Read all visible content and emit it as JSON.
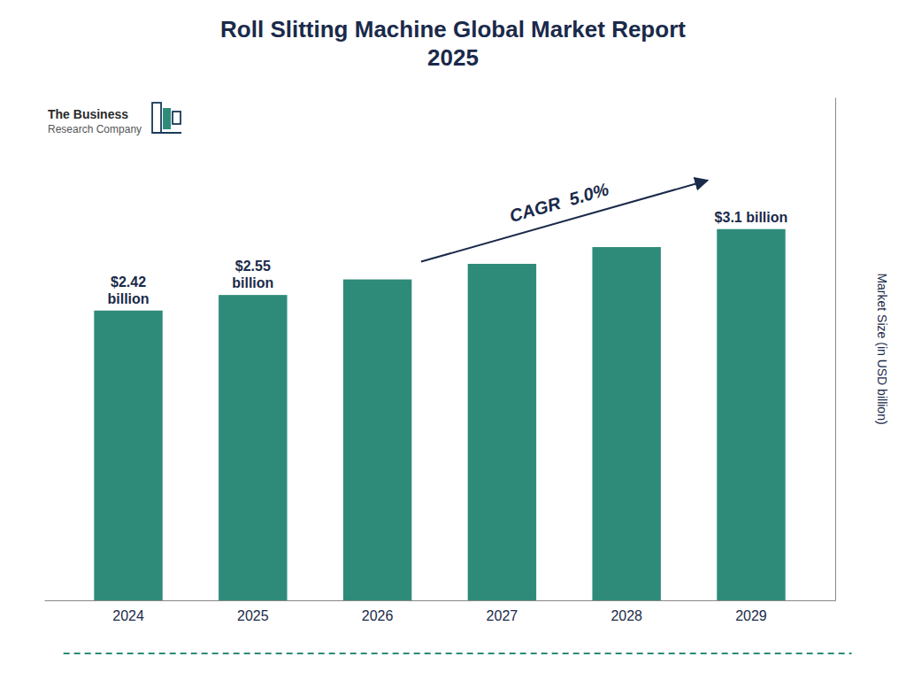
{
  "chart_data": {
    "type": "bar",
    "title": "Roll Slitting Machine Global Market Report\n2025",
    "categories": [
      "2024",
      "2025",
      "2026",
      "2027",
      "2028",
      "2029"
    ],
    "values": [
      2.42,
      2.55,
      2.68,
      2.81,
      2.95,
      3.1
    ],
    "color": "#2e8b7a",
    "ylim": [
      0,
      4.2
    ],
    "ylabel": "Market Size (in USD billion)",
    "tick_labels": "x",
    "annotations": [
      "$2.42\nbillion",
      "$2.55\nbillion",
      "$3.1 billion",
      "CAGR  5.0%",
      "The Business",
      "Research Company"
    ]
  }
}
